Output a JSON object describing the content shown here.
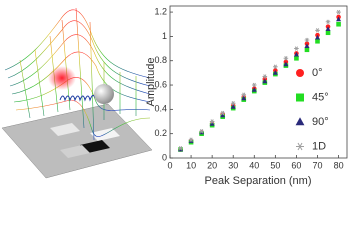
{
  "chart_data": {
    "type": "scatter",
    "xlabel": "Peak Separation (nm)",
    "ylabel": "Amplitude",
    "x": [
      5,
      10,
      15,
      20,
      25,
      30,
      35,
      40,
      45,
      50,
      55,
      60,
      65,
      70,
      75,
      80
    ],
    "series": [
      {
        "name": "0°",
        "color": "#ff2020",
        "marker": "circle",
        "values": [
          0.07,
          0.14,
          0.21,
          0.28,
          0.36,
          0.43,
          0.5,
          0.57,
          0.65,
          0.72,
          0.79,
          0.86,
          0.94,
          1.01,
          1.08,
          1.16
        ]
      },
      {
        "name": "45°",
        "color": "#22dd22",
        "marker": "square",
        "values": [
          0.07,
          0.13,
          0.2,
          0.27,
          0.34,
          0.41,
          0.48,
          0.55,
          0.62,
          0.69,
          0.76,
          0.82,
          0.89,
          0.96,
          1.03,
          1.1
        ]
      },
      {
        "name": "90°",
        "color": "#2a2a7a",
        "marker": "triangle",
        "values": [
          0.07,
          0.14,
          0.21,
          0.28,
          0.35,
          0.42,
          0.49,
          0.56,
          0.63,
          0.7,
          0.77,
          0.85,
          0.92,
          0.99,
          1.06,
          1.14
        ]
      },
      {
        "name": "1D",
        "color": "#a0a0a0",
        "marker": "star",
        "values": [
          0.08,
          0.15,
          0.22,
          0.3,
          0.37,
          0.45,
          0.52,
          0.6,
          0.67,
          0.75,
          0.82,
          0.9,
          0.97,
          1.05,
          1.12,
          1.2
        ]
      }
    ],
    "xlim": [
      0,
      84
    ],
    "xticks": [
      0,
      10,
      20,
      30,
      40,
      50,
      60,
      70,
      80
    ],
    "ylim": [
      0,
      1.25
    ],
    "yticks": [
      0,
      0.2,
      0.4,
      0.6,
      0.8,
      1.0,
      1.2
    ],
    "legend": "lower right"
  }
}
